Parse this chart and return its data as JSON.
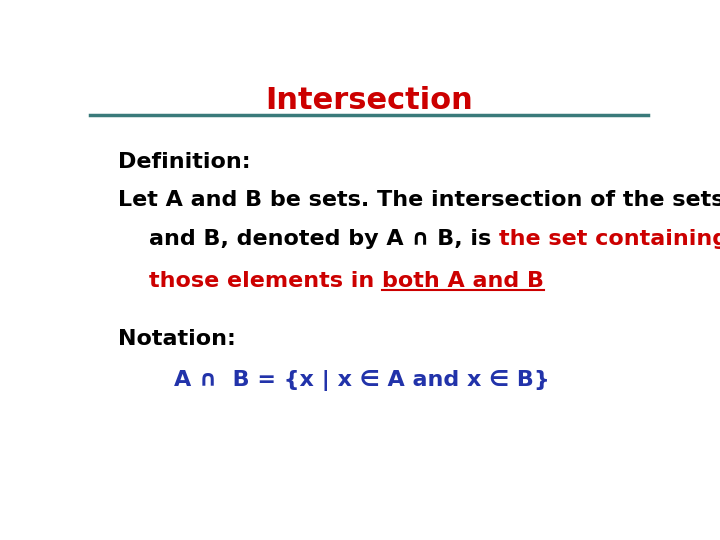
{
  "title": "Intersection",
  "title_color": "#cc0000",
  "title_fontsize": 22,
  "line_color": "#3a7a7a",
  "bg_color": "#ffffff",
  "def_label": "Definition:",
  "def_line1": "Let A and B be sets. The intersection of the sets A",
  "def_line2_black": "    and B, denoted by A ∩ B, is ",
  "def_line2_red": "the set containing",
  "def_line3_red1": "    those elements in ",
  "def_line3_red2": "both A and B",
  "notation_label": "Notation:",
  "notation_blue": "A ∩  B = {x | x ∈ A and x ∈ B}",
  "text_color_black": "#000000",
  "text_color_red": "#cc0000",
  "text_color_blue": "#2233aa",
  "body_fontsize": 16,
  "notation_fontsize": 16
}
